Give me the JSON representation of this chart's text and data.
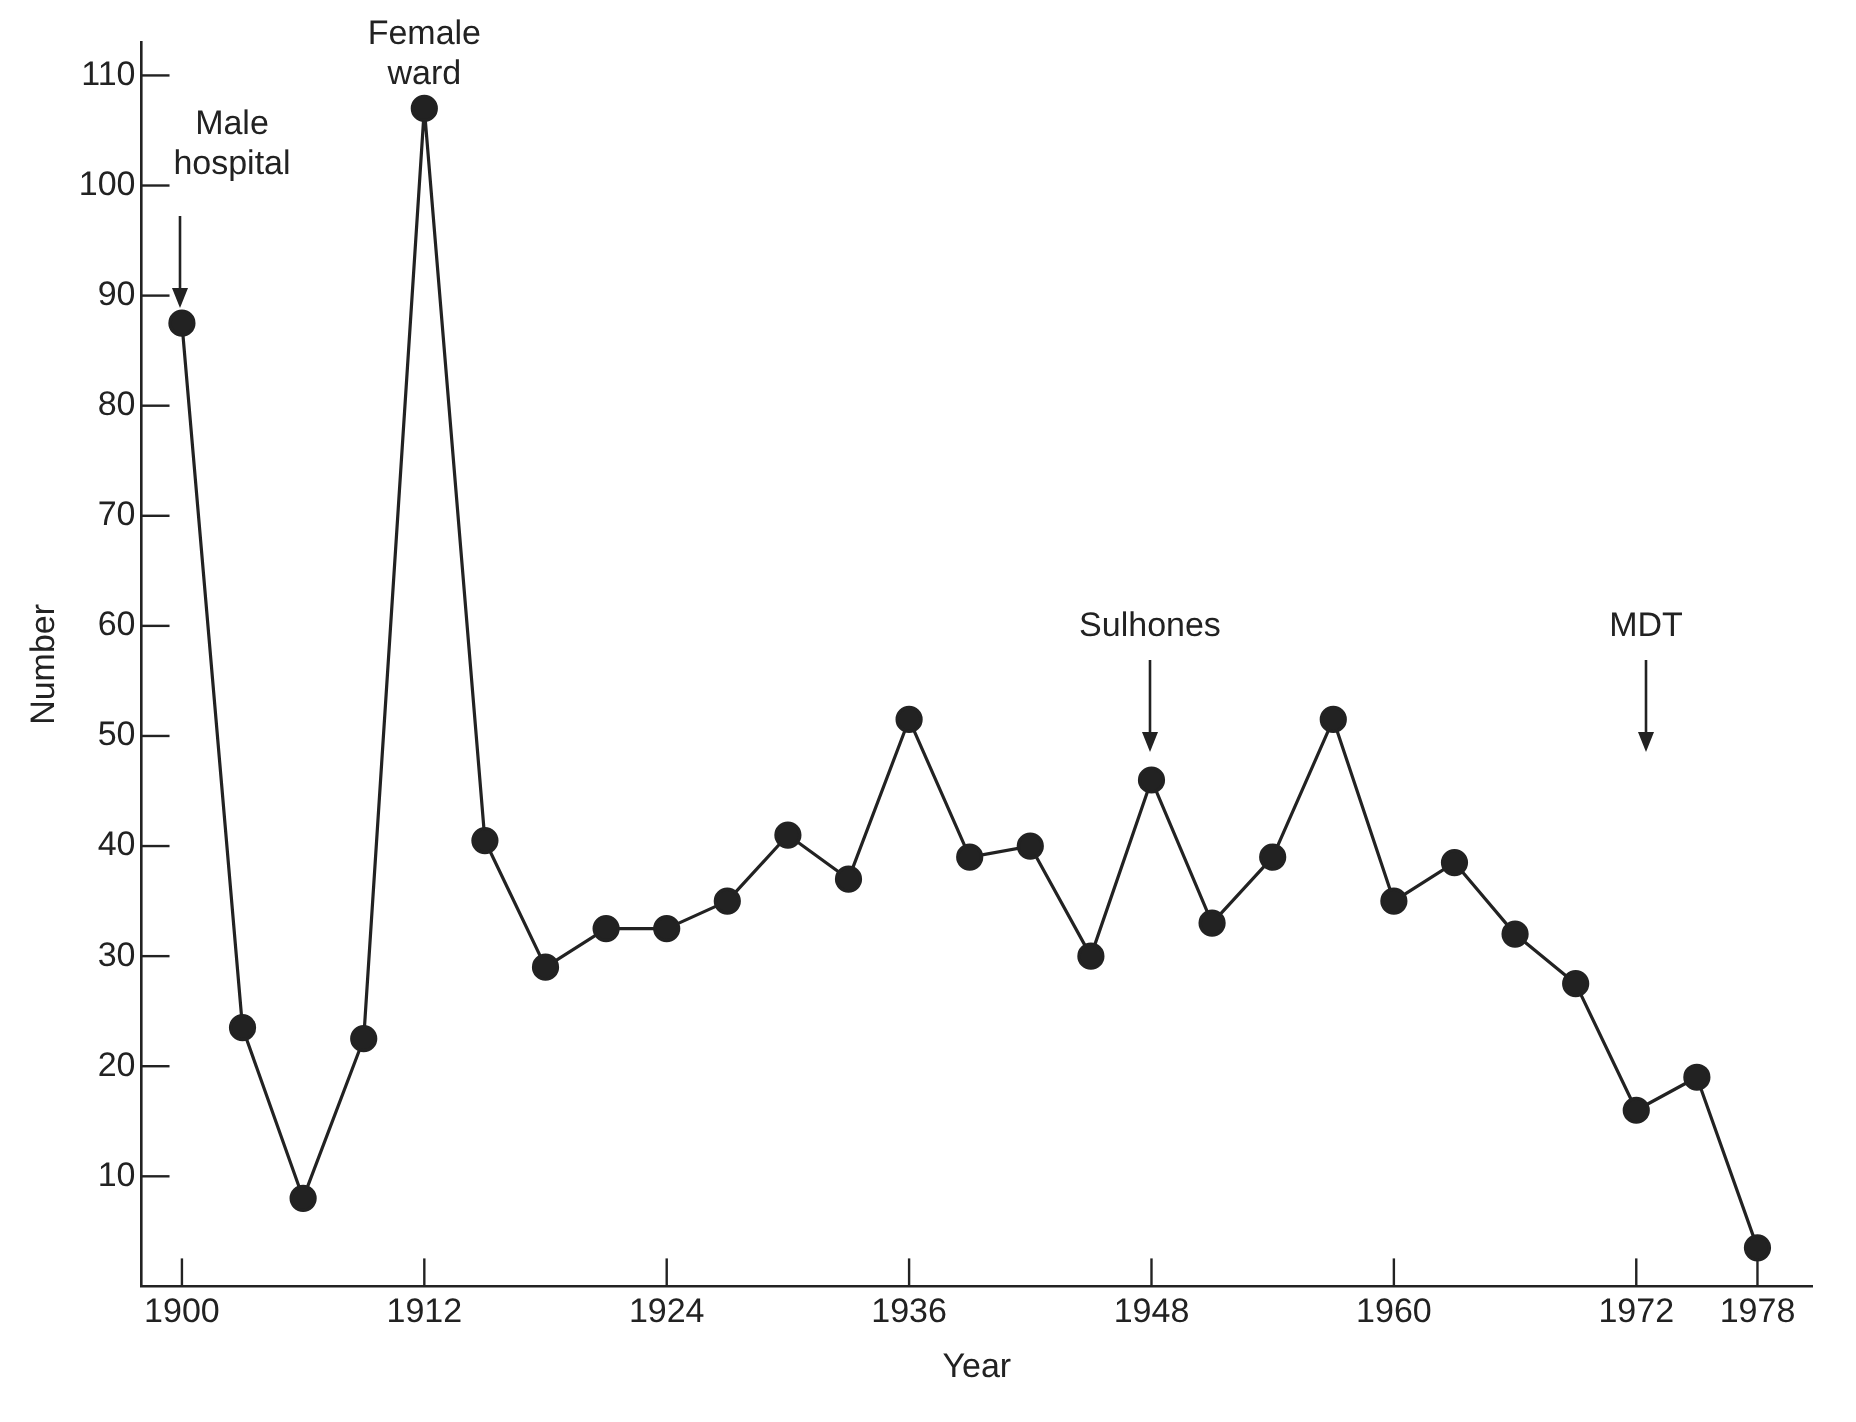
{
  "chart_data": {
    "type": "line",
    "xlabel": "Year",
    "ylabel": "Number",
    "x": [
      1900,
      1903,
      1906,
      1909,
      1912,
      1915,
      1918,
      1921,
      1924,
      1927,
      1930,
      1933,
      1936,
      1939,
      1942,
      1945,
      1948,
      1951,
      1954,
      1957,
      1960,
      1963,
      1966,
      1969,
      1972,
      1975,
      1978
    ],
    "series": [
      {
        "color": "#222222",
        "values": [
          87.5,
          23.5,
          8,
          22.5,
          107,
          40.5,
          29,
          32.5,
          32.5,
          35,
          41,
          37,
          51.5,
          39,
          40,
          30,
          46,
          33,
          39,
          51.5,
          35,
          38.5,
          32,
          27.5,
          16,
          19,
          3.5
        ]
      }
    ],
    "xlim": [
      1898,
      1980.7
    ],
    "xticks": [
      1900,
      1912,
      1924,
      1936,
      1948,
      1960,
      1972,
      1978
    ],
    "ylim": [
      0,
      113
    ],
    "yticks": [
      10,
      20,
      30,
      40,
      50,
      60,
      70,
      80,
      90,
      100,
      110
    ],
    "marker": "circle",
    "line_style": "solid",
    "grid": false,
    "legend": false,
    "annotations": [
      "Male\nhospital",
      {
        "text": "Female\nward",
        "x": 1912,
        "y": 107
      },
      "Sulhones",
      "MDT"
    ]
  }
}
